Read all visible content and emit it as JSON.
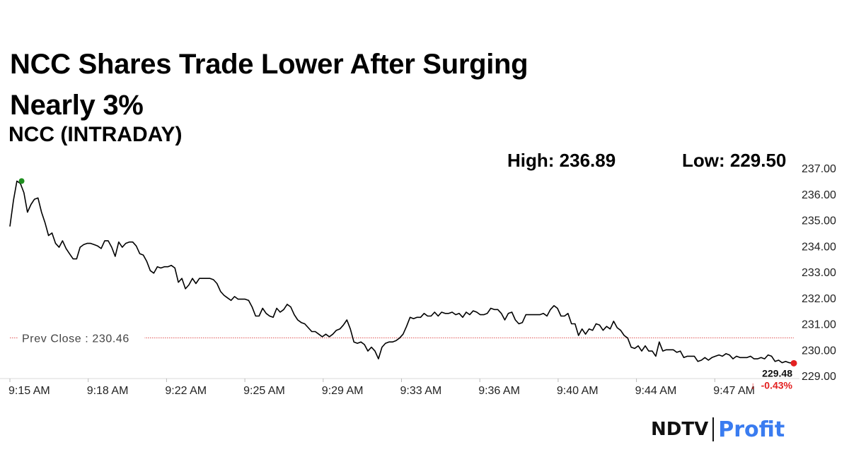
{
  "headline": "NCC Shares Trade Lower After Surging Nearly 3%",
  "brand": {
    "left": "NDTV",
    "right": "Profit"
  },
  "stats": {
    "high_label": "High: 236.89",
    "low_label": "Low: 229.50"
  },
  "chart_data": {
    "type": "line",
    "title": "NCC (INTRADAY)",
    "x_ticks": [
      "9:15 AM",
      "9:18 AM",
      "9:22 AM",
      "9:25 AM",
      "9:29 AM",
      "9:33 AM",
      "9:36 AM",
      "9:40 AM",
      "9:44 AM",
      "9:47 AM"
    ],
    "y_ticks": [
      "237.00",
      "236.00",
      "235.00",
      "234.00",
      "233.00",
      "232.00",
      "231.00",
      "230.00",
      "229.00"
    ],
    "ylim": [
      229,
      237
    ],
    "x_range_minutes": [
      0,
      33.5
    ],
    "grid": false,
    "series": [
      {
        "color": "#000000",
        "points": [
          [
            0.0,
            234.75
          ],
          [
            0.15,
            235.75
          ],
          [
            0.3,
            236.5
          ],
          [
            0.45,
            236.4
          ],
          [
            0.6,
            236.05
          ],
          [
            0.75,
            235.3
          ],
          [
            0.9,
            235.6
          ],
          [
            1.05,
            235.8
          ],
          [
            1.2,
            235.85
          ],
          [
            1.35,
            235.3
          ],
          [
            1.5,
            234.9
          ],
          [
            1.65,
            234.4
          ],
          [
            1.8,
            234.5
          ],
          [
            1.95,
            234.1
          ],
          [
            2.1,
            233.95
          ],
          [
            2.25,
            234.2
          ],
          [
            2.4,
            233.9
          ],
          [
            2.55,
            233.7
          ],
          [
            2.7,
            233.5
          ],
          [
            2.85,
            233.5
          ],
          [
            3.0,
            233.95
          ],
          [
            3.15,
            234.05
          ],
          [
            3.3,
            234.1
          ],
          [
            3.45,
            234.1
          ],
          [
            3.6,
            234.05
          ],
          [
            3.75,
            234.0
          ],
          [
            3.9,
            233.9
          ],
          [
            4.05,
            234.2
          ],
          [
            4.2,
            234.2
          ],
          [
            4.35,
            233.95
          ],
          [
            4.5,
            233.6
          ],
          [
            4.65,
            234.15
          ],
          [
            4.8,
            233.95
          ],
          [
            4.95,
            234.1
          ],
          [
            5.1,
            234.15
          ],
          [
            5.25,
            234.15
          ],
          [
            5.4,
            234.0
          ],
          [
            5.55,
            233.7
          ],
          [
            5.7,
            233.65
          ],
          [
            5.85,
            233.4
          ],
          [
            6.0,
            233.05
          ],
          [
            6.15,
            232.95
          ],
          [
            6.3,
            233.2
          ],
          [
            6.45,
            233.15
          ],
          [
            6.6,
            233.2
          ],
          [
            6.75,
            233.2
          ],
          [
            6.9,
            233.25
          ],
          [
            7.05,
            233.15
          ],
          [
            7.2,
            232.6
          ],
          [
            7.35,
            232.75
          ],
          [
            7.5,
            232.35
          ],
          [
            7.65,
            232.5
          ],
          [
            7.8,
            232.75
          ],
          [
            7.95,
            232.55
          ],
          [
            8.1,
            232.75
          ],
          [
            8.25,
            232.75
          ],
          [
            8.4,
            232.75
          ],
          [
            8.55,
            232.75
          ],
          [
            8.7,
            232.7
          ],
          [
            8.85,
            232.55
          ],
          [
            9.0,
            232.25
          ],
          [
            9.15,
            232.1
          ],
          [
            9.3,
            232.0
          ],
          [
            9.45,
            231.9
          ],
          [
            9.6,
            232.05
          ],
          [
            9.75,
            231.95
          ],
          [
            9.9,
            231.95
          ],
          [
            10.05,
            231.95
          ],
          [
            10.2,
            231.9
          ],
          [
            10.35,
            231.65
          ],
          [
            10.5,
            231.3
          ],
          [
            10.65,
            231.3
          ],
          [
            10.8,
            231.6
          ],
          [
            10.95,
            231.4
          ],
          [
            11.1,
            231.3
          ],
          [
            11.25,
            231.25
          ],
          [
            11.4,
            231.6
          ],
          [
            11.55,
            231.45
          ],
          [
            11.7,
            231.55
          ],
          [
            11.85,
            231.75
          ],
          [
            12.0,
            231.65
          ],
          [
            12.15,
            231.35
          ],
          [
            12.3,
            231.15
          ],
          [
            12.45,
            231.05
          ],
          [
            12.6,
            231.0
          ],
          [
            12.75,
            230.85
          ],
          [
            12.9,
            230.7
          ],
          [
            13.05,
            230.7
          ],
          [
            13.2,
            230.6
          ],
          [
            13.35,
            230.5
          ],
          [
            13.5,
            230.6
          ],
          [
            13.65,
            230.5
          ],
          [
            13.8,
            230.6
          ],
          [
            13.95,
            230.75
          ],
          [
            14.1,
            230.8
          ],
          [
            14.25,
            230.95
          ],
          [
            14.4,
            231.15
          ],
          [
            14.55,
            230.8
          ],
          [
            14.7,
            230.3
          ],
          [
            14.85,
            230.25
          ],
          [
            15.0,
            230.3
          ],
          [
            15.15,
            230.2
          ],
          [
            15.3,
            229.95
          ],
          [
            15.45,
            230.1
          ],
          [
            15.6,
            229.95
          ],
          [
            15.75,
            229.65
          ],
          [
            15.9,
            230.1
          ],
          [
            16.05,
            230.25
          ],
          [
            16.2,
            230.3
          ],
          [
            16.35,
            230.3
          ],
          [
            16.5,
            230.35
          ],
          [
            16.65,
            230.45
          ],
          [
            16.8,
            230.6
          ],
          [
            16.95,
            230.9
          ],
          [
            17.1,
            231.25
          ],
          [
            17.25,
            231.2
          ],
          [
            17.4,
            231.25
          ],
          [
            17.55,
            231.25
          ],
          [
            17.7,
            231.4
          ],
          [
            17.85,
            231.3
          ],
          [
            18.0,
            231.3
          ],
          [
            18.15,
            231.45
          ],
          [
            18.3,
            231.3
          ],
          [
            18.45,
            231.45
          ],
          [
            18.6,
            231.4
          ],
          [
            18.75,
            231.4
          ],
          [
            18.9,
            231.45
          ],
          [
            19.05,
            231.35
          ],
          [
            19.2,
            231.4
          ],
          [
            19.35,
            231.25
          ],
          [
            19.5,
            231.45
          ],
          [
            19.65,
            231.35
          ],
          [
            19.8,
            231.5
          ],
          [
            19.95,
            231.45
          ],
          [
            20.1,
            231.35
          ],
          [
            20.25,
            231.35
          ],
          [
            20.4,
            231.4
          ],
          [
            20.55,
            231.6
          ],
          [
            20.7,
            231.55
          ],
          [
            20.85,
            231.55
          ],
          [
            21.0,
            231.4
          ],
          [
            21.15,
            231.15
          ],
          [
            21.3,
            231.4
          ],
          [
            21.45,
            231.45
          ],
          [
            21.6,
            231.15
          ],
          [
            21.75,
            231.0
          ],
          [
            21.9,
            231.05
          ],
          [
            22.05,
            231.35
          ],
          [
            22.2,
            231.35
          ],
          [
            22.35,
            231.35
          ],
          [
            22.5,
            231.35
          ],
          [
            22.65,
            231.35
          ],
          [
            22.8,
            231.4
          ],
          [
            22.95,
            231.3
          ],
          [
            23.1,
            231.55
          ],
          [
            23.25,
            231.7
          ],
          [
            23.4,
            231.6
          ],
          [
            23.55,
            231.3
          ],
          [
            23.7,
            231.3
          ],
          [
            23.85,
            231.4
          ],
          [
            24.0,
            231.0
          ],
          [
            24.15,
            231.0
          ],
          [
            24.3,
            230.55
          ],
          [
            24.45,
            230.8
          ],
          [
            24.6,
            230.6
          ],
          [
            24.75,
            230.8
          ],
          [
            24.9,
            230.75
          ],
          [
            25.05,
            231.0
          ],
          [
            25.2,
            230.95
          ],
          [
            25.35,
            230.75
          ],
          [
            25.5,
            230.9
          ],
          [
            25.65,
            230.8
          ],
          [
            25.8,
            231.1
          ],
          [
            25.95,
            230.85
          ],
          [
            26.1,
            230.75
          ],
          [
            26.25,
            230.55
          ],
          [
            26.4,
            230.45
          ],
          [
            26.55,
            230.1
          ],
          [
            26.7,
            230.05
          ],
          [
            26.85,
            230.15
          ],
          [
            27.0,
            229.95
          ],
          [
            27.15,
            230.15
          ],
          [
            27.3,
            229.95
          ],
          [
            27.45,
            229.95
          ],
          [
            27.6,
            229.75
          ],
          [
            27.75,
            230.3
          ],
          [
            27.9,
            229.95
          ],
          [
            28.05,
            230.0
          ],
          [
            28.2,
            230.0
          ],
          [
            28.35,
            230.0
          ],
          [
            28.5,
            229.9
          ],
          [
            28.65,
            229.95
          ],
          [
            28.8,
            229.7
          ],
          [
            28.95,
            229.75
          ],
          [
            29.1,
            229.75
          ],
          [
            29.25,
            229.75
          ],
          [
            29.4,
            229.55
          ],
          [
            29.55,
            229.6
          ],
          [
            29.7,
            229.7
          ],
          [
            29.85,
            229.6
          ],
          [
            30.0,
            229.7
          ],
          [
            30.15,
            229.75
          ],
          [
            30.3,
            229.8
          ],
          [
            30.45,
            229.75
          ],
          [
            30.6,
            229.85
          ],
          [
            30.75,
            229.8
          ],
          [
            30.9,
            229.65
          ],
          [
            31.05,
            229.75
          ],
          [
            31.2,
            229.7
          ],
          [
            31.35,
            229.7
          ],
          [
            31.5,
            229.7
          ],
          [
            31.65,
            229.75
          ],
          [
            31.8,
            229.65
          ],
          [
            31.95,
            229.65
          ],
          [
            32.1,
            229.7
          ],
          [
            32.25,
            229.65
          ],
          [
            32.4,
            229.8
          ],
          [
            32.55,
            229.75
          ],
          [
            32.7,
            229.55
          ],
          [
            32.85,
            229.6
          ],
          [
            33.0,
            229.5
          ],
          [
            33.15,
            229.55
          ],
          [
            33.3,
            229.5
          ],
          [
            33.5,
            229.48
          ]
        ]
      }
    ],
    "high_point": [
      0.5,
      236.5
    ],
    "last_point": [
      33.5,
      229.48
    ],
    "reference_line": {
      "label": "Prev Close : 230.46",
      "value": 230.46,
      "color": "#e05050"
    },
    "last_value_label": "229.48",
    "change_label": "-0.43%",
    "change_arrow": "↓",
    "colors": {
      "line": "#000000",
      "high_marker": "#1f8f1f",
      "last_marker": "#e32020",
      "negative": "#e32020"
    }
  }
}
